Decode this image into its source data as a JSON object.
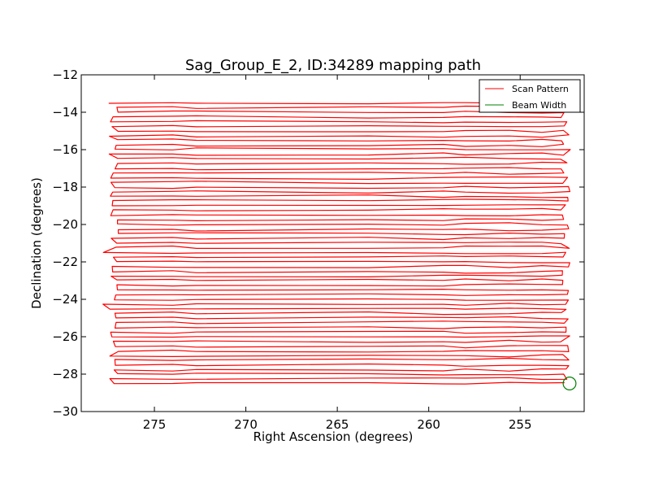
{
  "chart_data": {
    "type": "line",
    "title": "Sag_Group_E_2, ID:34289 mapping path",
    "xlabel": "Right Ascension (degrees)",
    "ylabel": "Declination (degrees)",
    "xlim": [
      279.0,
      251.5
    ],
    "ylim": [
      -30,
      -12
    ],
    "x_inverted": true,
    "xticks": [
      275,
      270,
      265,
      260,
      255
    ],
    "yticks": [
      -12,
      -14,
      -16,
      -18,
      -20,
      -22,
      -24,
      -26,
      -28,
      -30
    ],
    "xtick_labels": [
      "275",
      "270",
      "265",
      "260",
      "255"
    ],
    "ytick_labels": [
      "−12",
      "−14",
      "−16",
      "−18",
      "−20",
      "−22",
      "−24",
      "−26",
      "−28",
      "−30"
    ],
    "grid": false,
    "legend": {
      "placement": "top-right",
      "entries": [
        "Scan Pattern",
        "Beam Width"
      ]
    },
    "series": [
      {
        "name": "Scan Pattern",
        "color": "#ff0000",
        "style": "boustrophedon raster scan",
        "dec_start": -13.5,
        "dec_end": -28.5,
        "row_spacing": 0.25,
        "ra_left_edge": 277.5,
        "ra_right_edge": 252.5
      },
      {
        "name": "Beam Width",
        "color": "#008000",
        "shape": "circle",
        "center": [
          252.3,
          -28.5
        ],
        "radius_deg": 0.35
      }
    ]
  }
}
